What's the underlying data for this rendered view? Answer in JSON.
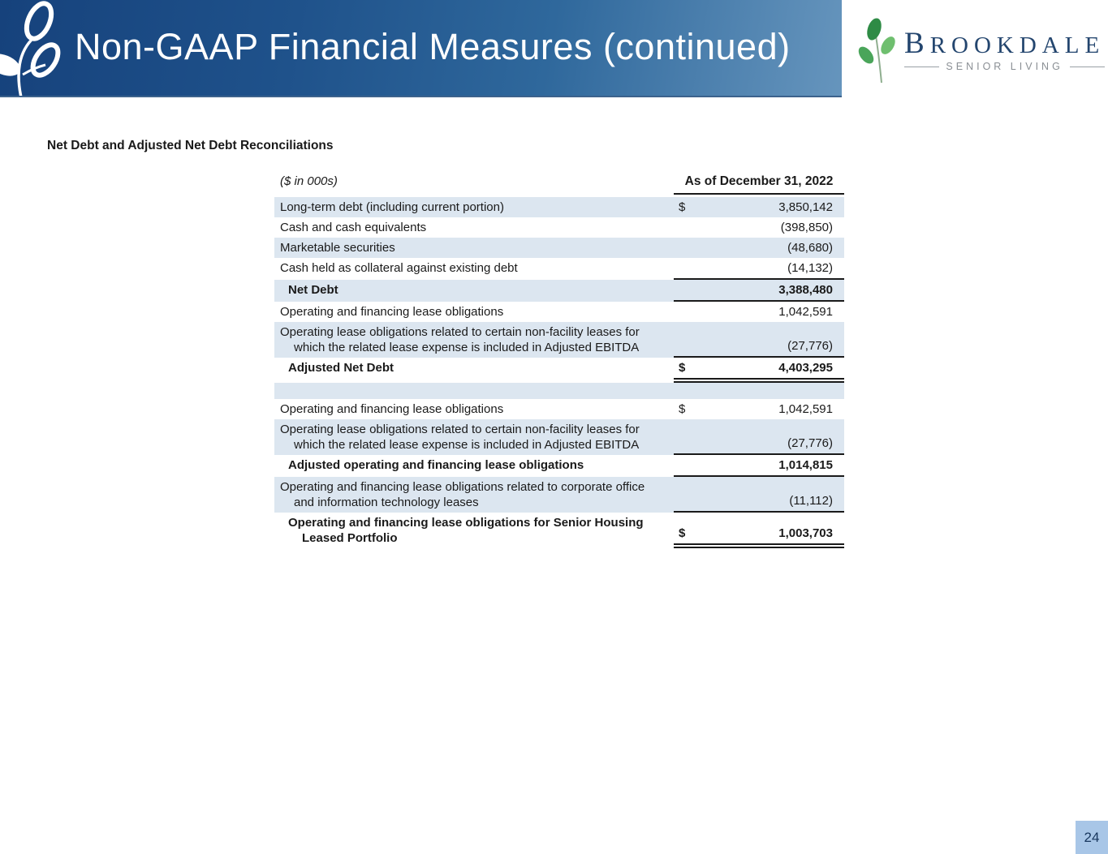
{
  "banner": {
    "title": "Non-GAAP Financial Measures (continued)"
  },
  "logo": {
    "brand": "BROOKDALE",
    "tagline": "SENIOR LIVING"
  },
  "section": {
    "title": "Net Debt and Adjusted Net Debt Reconciliations"
  },
  "table": {
    "units_label": "($ in 000s)",
    "column_header": "As of December 31, 2022",
    "rows": [
      {
        "label": "Long-term debt (including current portion)",
        "dollar": "$",
        "value": "3,850,142",
        "shaded": true
      },
      {
        "label": "Cash and cash equivalents",
        "value": "(398,850)"
      },
      {
        "label": "Marketable securities",
        "value": "(48,680)",
        "shaded": true
      },
      {
        "label": "Cash held as collateral against existing debt",
        "value": "(14,132)",
        "line_below": true
      },
      {
        "label": "Net Debt",
        "value": "3,388,480",
        "bold": true,
        "indent": true,
        "shaded": true,
        "line_below": true
      },
      {
        "label": "Operating and financing lease obligations",
        "value": "1,042,591"
      },
      {
        "label": "Operating lease obligations related to certain non-facility leases for",
        "label2": "which the related lease expense is included in Adjusted EBITDA",
        "value": "(27,776)",
        "shaded": true,
        "line_below": true
      },
      {
        "label": "Adjusted Net Debt",
        "dollar": "$",
        "value": "4,403,295",
        "bold": true,
        "indent": true,
        "double_below": true
      },
      {
        "spacer": true,
        "shaded": true
      },
      {
        "label": "Operating and financing lease obligations",
        "dollar": "$",
        "value": "1,042,591"
      },
      {
        "label": "Operating lease obligations related to certain non-facility leases for",
        "label2": "which the related lease expense is included in Adjusted EBITDA",
        "value": "(27,776)",
        "shaded": true,
        "line_below": true
      },
      {
        "label": "Adjusted operating and financing lease obligations",
        "value": "1,014,815",
        "bold": true,
        "indent": true,
        "line_below": true
      },
      {
        "label": "Operating and financing lease obligations related to corporate office",
        "label2": "and information technology leases",
        "value": "(11,112)",
        "shaded": true,
        "line_below": true
      },
      {
        "label": "Operating and financing lease obligations for Senior Housing",
        "label2": "Leased Portfolio",
        "dollar": "$",
        "value": "1,003,703",
        "bold": true,
        "indent": true,
        "double_below": true
      }
    ]
  },
  "page_number": "24",
  "colors": {
    "banner_gradient_start": "#16427c",
    "banner_gradient_end": "#6695bd",
    "row_shade": "#dce6f0",
    "rule_color": "#1a1a1a",
    "page_box_bg": "#a8c6e7",
    "logo_navy": "#23456e",
    "logo_gray": "#8a8f94",
    "leaf_green_dark": "#2e8b45",
    "leaf_green_light": "#6fbf6f"
  }
}
